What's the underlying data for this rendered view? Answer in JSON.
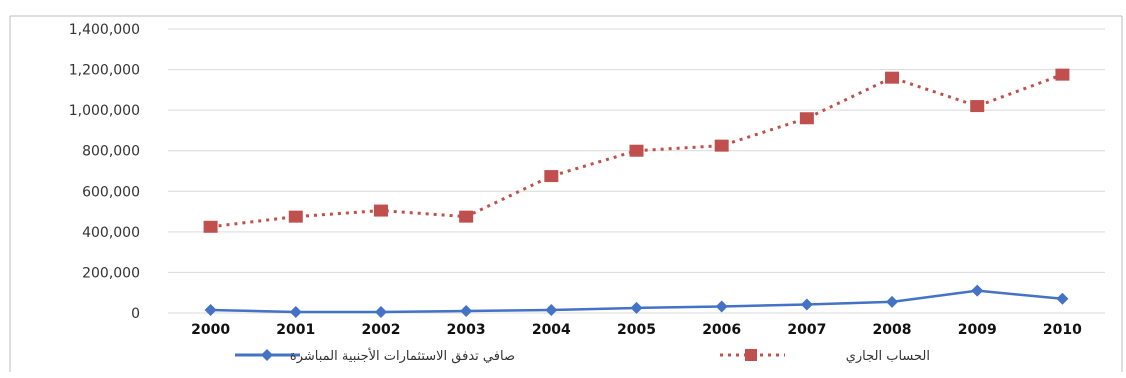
{
  "chart_data": {
    "type": "line",
    "title": "",
    "categories": [
      "2000",
      "2001",
      "2002",
      "2003",
      "2004",
      "2005",
      "2006",
      "2007",
      "2008",
      "2009",
      "2010"
    ],
    "ylim": [
      0,
      1400000
    ],
    "y_ticks": [
      "0",
      "200,000",
      "400,000",
      "600,000",
      "800,000",
      "1,000,000",
      "1,200,000",
      "1,400,000"
    ],
    "y_tick_values": [
      0,
      200000,
      400000,
      600000,
      800000,
      1000000,
      1200000,
      1400000
    ],
    "grid": true,
    "legend_position": "bottom",
    "series": [
      {
        "name": "صافي تدفق الاستثمارات الأجنبية المباشرة",
        "color": "#4472c4",
        "style": "solid",
        "marker": "diamond",
        "values": [
          15000,
          5000,
          5000,
          10000,
          15000,
          25000,
          32000,
          42000,
          55000,
          110000,
          70000
        ]
      },
      {
        "name": "الحساب الجاري",
        "color": "#c0504d",
        "style": "dotted",
        "marker": "square",
        "values": [
          425000,
          475000,
          505000,
          475000,
          675000,
          800000,
          825000,
          960000,
          1160000,
          1020000,
          1175000
        ]
      }
    ]
  }
}
